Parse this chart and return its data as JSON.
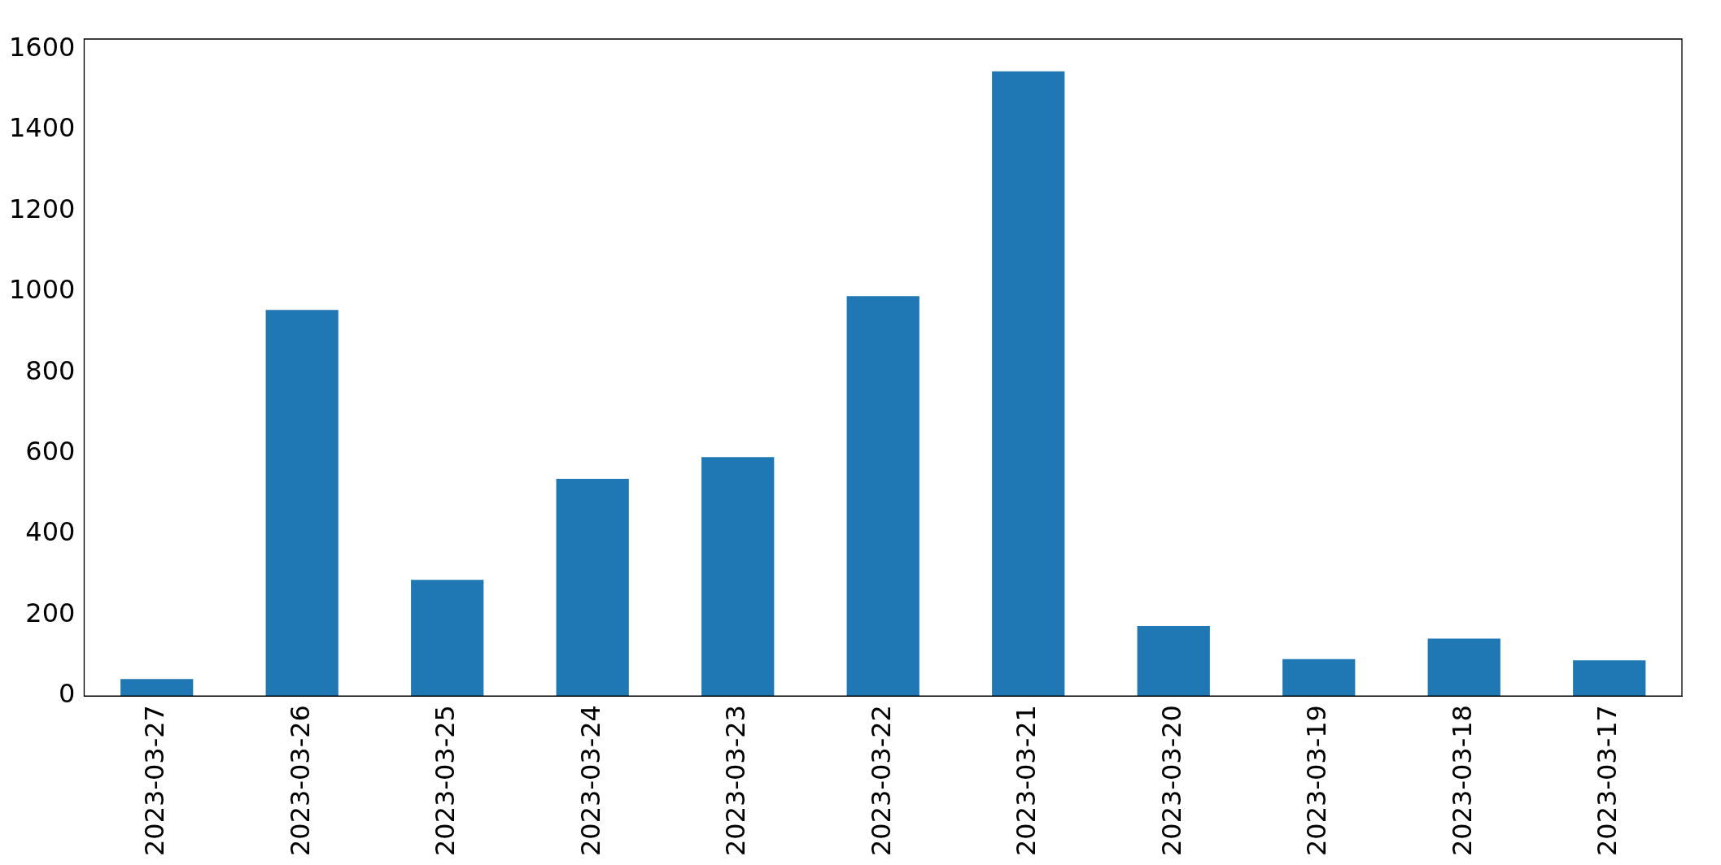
{
  "chart_data": {
    "type": "bar",
    "categories": [
      "2023-03-27",
      "2023-03-26",
      "2023-03-25",
      "2023-03-24",
      "2023-03-23",
      "2023-03-22",
      "2023-03-21",
      "2023-03-20",
      "2023-03-19",
      "2023-03-18",
      "2023-03-17"
    ],
    "values": [
      42,
      955,
      287,
      537,
      591,
      989,
      1545,
      173,
      91,
      142,
      88
    ],
    "color": "#1f77b4",
    "ylim": [
      0,
      1625
    ],
    "yticks": [
      0,
      200,
      400,
      600,
      800,
      1000,
      1200,
      1400,
      1600
    ],
    "grid": false,
    "legend": false
  }
}
